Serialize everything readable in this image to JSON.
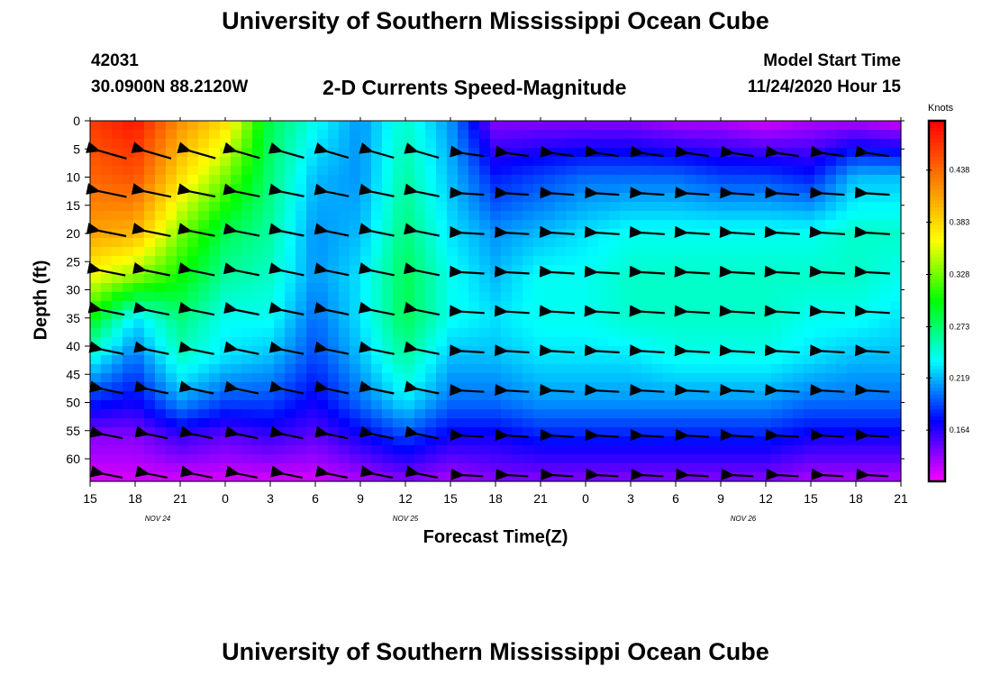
{
  "header": {
    "title": "University of Southern Mississippi Ocean Cube",
    "station_id": "42031",
    "station_coords": "30.0900N 88.2120W",
    "plot_title": "2-D Currents Speed-Magnitude",
    "model_label": "Model Start Time",
    "model_time": "11/24/2020 Hour 15"
  },
  "footer": {
    "title": "University of Southern Mississippi Ocean Cube"
  },
  "chart_data": {
    "type": "heatmap",
    "title": "2-D Currents Speed-Magnitude",
    "xlabel": "Forecast Time(Z)",
    "ylabel": "Depth (ft)",
    "units": "Knots",
    "x_range_hours": [
      0,
      54
    ],
    "y_range_ft": [
      0,
      64
    ],
    "x_ticks": [
      "15",
      "18",
      "21",
      "0",
      "3",
      "6",
      "9",
      "12",
      "15",
      "18",
      "21",
      "0",
      "3",
      "6",
      "9",
      "12",
      "15",
      "18",
      "21"
    ],
    "date_labels": [
      {
        "label": "NOV  24",
        "hour": 4.5
      },
      {
        "label": "NOV  25",
        "hour": 21
      },
      {
        "label": "NOV  26",
        "hour": 43.5
      }
    ],
    "y_ticks": [
      0,
      5,
      10,
      15,
      20,
      25,
      30,
      35,
      40,
      45,
      50,
      55,
      60
    ],
    "colorbar": {
      "range": [
        0.11,
        0.49
      ],
      "ticks": [
        "0.438",
        "0.383",
        "0.328",
        "0.273",
        "0.219",
        "0.164"
      ],
      "tick_values": [
        0.438,
        0.383,
        0.328,
        0.273,
        0.219,
        0.164
      ],
      "colors": [
        "#ff00ff",
        "#0000ff",
        "#00ffff",
        "#00ff00",
        "#ffff00",
        "#ff8000",
        "#ff0000"
      ]
    },
    "vector_times_hours": [
      1.5,
      4.5,
      7.5,
      10.5,
      13.5,
      16.5,
      19.5,
      22.5,
      25.5,
      28.5,
      31.5,
      34.5,
      37.5,
      40.5,
      43.5,
      46.5,
      49.5,
      52.5
    ],
    "vector_depths_ft": [
      6,
      13,
      20,
      27,
      34,
      41,
      48,
      56,
      63
    ],
    "speed_profiles": [
      {
        "hour": 0,
        "depths": [
          0,
          10,
          20,
          28,
          35,
          42,
          50,
          56,
          64
        ],
        "speeds": [
          0.46,
          0.44,
          0.41,
          0.36,
          0.3,
          0.24,
          0.18,
          0.14,
          0.12
        ]
      },
      {
        "hour": 3,
        "depths": [
          0,
          10,
          20,
          28,
          35,
          42,
          50,
          56,
          64
        ],
        "speeds": [
          0.48,
          0.45,
          0.4,
          0.33,
          0.23,
          0.2,
          0.17,
          0.14,
          0.12
        ]
      },
      {
        "hour": 6,
        "depths": [
          0,
          10,
          20,
          28,
          35,
          42,
          50,
          56,
          64
        ],
        "speeds": [
          0.42,
          0.38,
          0.33,
          0.3,
          0.27,
          0.25,
          0.21,
          0.16,
          0.12
        ]
      },
      {
        "hour": 9,
        "depths": [
          0,
          10,
          20,
          28,
          35,
          42,
          50,
          56,
          64
        ],
        "speeds": [
          0.38,
          0.33,
          0.28,
          0.26,
          0.24,
          0.23,
          0.19,
          0.15,
          0.12
        ]
      },
      {
        "hour": 12,
        "depths": [
          0,
          10,
          20,
          28,
          35,
          42,
          50,
          56,
          64
        ],
        "speeds": [
          0.28,
          0.27,
          0.26,
          0.25,
          0.24,
          0.22,
          0.19,
          0.16,
          0.12
        ]
      },
      {
        "hour": 15,
        "depths": [
          0,
          10,
          20,
          28,
          35,
          42,
          50,
          56,
          64
        ],
        "speeds": [
          0.24,
          0.22,
          0.21,
          0.21,
          0.2,
          0.19,
          0.17,
          0.15,
          0.12
        ]
      },
      {
        "hour": 18,
        "depths": [
          0,
          10,
          20,
          28,
          35,
          42,
          50,
          56,
          64
        ],
        "speeds": [
          0.21,
          0.21,
          0.22,
          0.23,
          0.23,
          0.22,
          0.2,
          0.17,
          0.13
        ]
      },
      {
        "hour": 21,
        "depths": [
          0,
          10,
          20,
          28,
          35,
          42,
          50,
          56,
          64
        ],
        "speeds": [
          0.25,
          0.26,
          0.27,
          0.28,
          0.28,
          0.26,
          0.23,
          0.19,
          0.14
        ]
      },
      {
        "hour": 24,
        "depths": [
          0,
          10,
          20,
          28,
          35,
          42,
          50,
          56,
          64
        ],
        "speeds": [
          0.21,
          0.22,
          0.23,
          0.24,
          0.24,
          0.22,
          0.2,
          0.17,
          0.13
        ]
      },
      {
        "hour": 27,
        "depths": [
          0,
          10,
          20,
          28,
          35,
          42,
          50,
          56,
          64
        ],
        "speeds": [
          0.14,
          0.18,
          0.21,
          0.22,
          0.23,
          0.22,
          0.2,
          0.17,
          0.14
        ]
      },
      {
        "hour": 30,
        "depths": [
          0,
          10,
          20,
          28,
          35,
          42,
          50,
          56,
          64
        ],
        "speeds": [
          0.14,
          0.19,
          0.22,
          0.24,
          0.24,
          0.23,
          0.21,
          0.18,
          0.14
        ]
      },
      {
        "hour": 33,
        "depths": [
          0,
          10,
          20,
          28,
          35,
          42,
          50,
          56,
          64
        ],
        "speeds": [
          0.14,
          0.2,
          0.23,
          0.24,
          0.24,
          0.23,
          0.21,
          0.18,
          0.14
        ]
      },
      {
        "hour": 36,
        "depths": [
          0,
          10,
          20,
          28,
          35,
          42,
          50,
          56,
          64
        ],
        "speeds": [
          0.14,
          0.2,
          0.24,
          0.25,
          0.25,
          0.23,
          0.21,
          0.18,
          0.14
        ]
      },
      {
        "hour": 39,
        "depths": [
          0,
          10,
          20,
          28,
          35,
          42,
          50,
          56,
          64
        ],
        "speeds": [
          0.13,
          0.2,
          0.24,
          0.25,
          0.25,
          0.24,
          0.21,
          0.18,
          0.14
        ]
      },
      {
        "hour": 42,
        "depths": [
          0,
          10,
          20,
          28,
          35,
          42,
          50,
          56,
          64
        ],
        "speeds": [
          0.13,
          0.19,
          0.24,
          0.25,
          0.25,
          0.24,
          0.21,
          0.18,
          0.14
        ]
      },
      {
        "hour": 45,
        "depths": [
          0,
          10,
          20,
          28,
          35,
          42,
          50,
          56,
          64
        ],
        "speeds": [
          0.12,
          0.19,
          0.24,
          0.25,
          0.25,
          0.24,
          0.21,
          0.18,
          0.14
        ]
      },
      {
        "hour": 48,
        "depths": [
          0,
          10,
          20,
          28,
          35,
          42,
          50,
          56,
          64
        ],
        "speeds": [
          0.13,
          0.18,
          0.24,
          0.25,
          0.24,
          0.23,
          0.2,
          0.17,
          0.13
        ]
      },
      {
        "hour": 51,
        "depths": [
          0,
          10,
          20,
          28,
          35,
          42,
          50,
          56,
          64
        ],
        "speeds": [
          0.13,
          0.22,
          0.25,
          0.25,
          0.24,
          0.22,
          0.2,
          0.17,
          0.13
        ]
      },
      {
        "hour": 54,
        "depths": [
          0,
          10,
          20,
          28,
          35,
          42,
          50,
          56,
          64
        ],
        "speeds": [
          0.12,
          0.22,
          0.25,
          0.24,
          0.23,
          0.22,
          0.2,
          0.17,
          0.13
        ]
      }
    ]
  }
}
